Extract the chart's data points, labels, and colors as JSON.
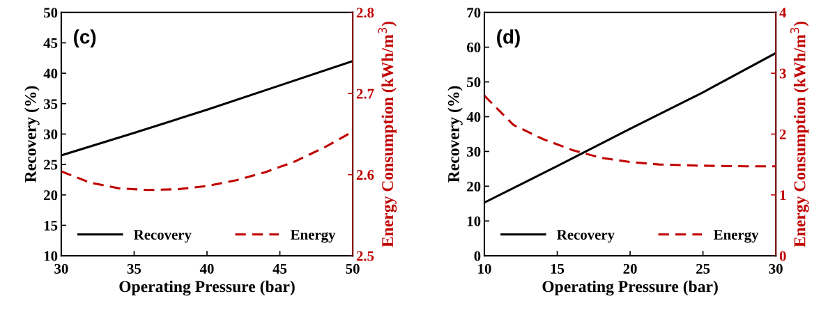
{
  "chart_data": [
    {
      "type": "line",
      "annotations": [
        "(c)"
      ],
      "xlabel": "Operating Pressure (bar)",
      "ylabel": "Recovery (%)",
      "y2label": "Energy Consumption (kWh/m$^{3}$)",
      "xlim": [
        30,
        50
      ],
      "xticks": [
        30,
        35,
        40,
        45,
        50
      ],
      "ylim": [
        10,
        50
      ],
      "yticks": [
        10,
        15,
        20,
        25,
        30,
        35,
        40,
        45,
        50
      ],
      "y2lim": [
        2.5,
        2.8
      ],
      "y2ticks": [
        2.5,
        2.6,
        2.7,
        2.8
      ],
      "legend": "bottom",
      "grid": false,
      "series": [
        {
          "name": "Recovery",
          "color": "#000000",
          "line_style": "solid",
          "x": [
            30,
            35,
            40,
            45,
            50
          ],
          "values": [
            26.5,
            30.2,
            34.0,
            38.0,
            42.0
          ]
        },
        {
          "name": "Energy",
          "color": "#c00000",
          "line_style": "dashed",
          "axis": "y2",
          "x": [
            30,
            32,
            34,
            36,
            38,
            40,
            42,
            44,
            46,
            48,
            50
          ],
          "values": [
            2.604,
            2.59,
            2.583,
            2.581,
            2.582,
            2.586,
            2.593,
            2.603,
            2.616,
            2.633,
            2.653
          ]
        }
      ]
    },
    {
      "type": "line",
      "annotations": [
        "(d)"
      ],
      "xlabel": "Operating Pressure (bar)",
      "ylabel": "Recovery (%)",
      "y2label": "Energy Consumption (kWh/m$^{3}$)",
      "xlim": [
        10,
        30
      ],
      "xticks": [
        10,
        15,
        20,
        25,
        30
      ],
      "ylim": [
        0,
        70
      ],
      "yticks": [
        0,
        10,
        20,
        30,
        40,
        50,
        60,
        70
      ],
      "y2lim": [
        0,
        4
      ],
      "y2ticks": [
        0,
        1,
        2,
        3,
        4
      ],
      "legend": "bottom",
      "grid": false,
      "series": [
        {
          "name": "Recovery",
          "color": "#000000",
          "line_style": "solid",
          "x": [
            10,
            15,
            20,
            25,
            30
          ],
          "values": [
            15.3,
            25.8,
            36.5,
            47.0,
            58.3
          ]
        },
        {
          "name": "Energy",
          "color": "#c00000",
          "line_style": "dashed",
          "axis": "y2",
          "x": [
            10,
            12,
            14,
            16,
            18,
            20,
            22,
            25,
            28,
            30
          ],
          "values": [
            2.63,
            2.15,
            1.92,
            1.74,
            1.61,
            1.54,
            1.5,
            1.48,
            1.47,
            1.47
          ]
        }
      ]
    }
  ]
}
